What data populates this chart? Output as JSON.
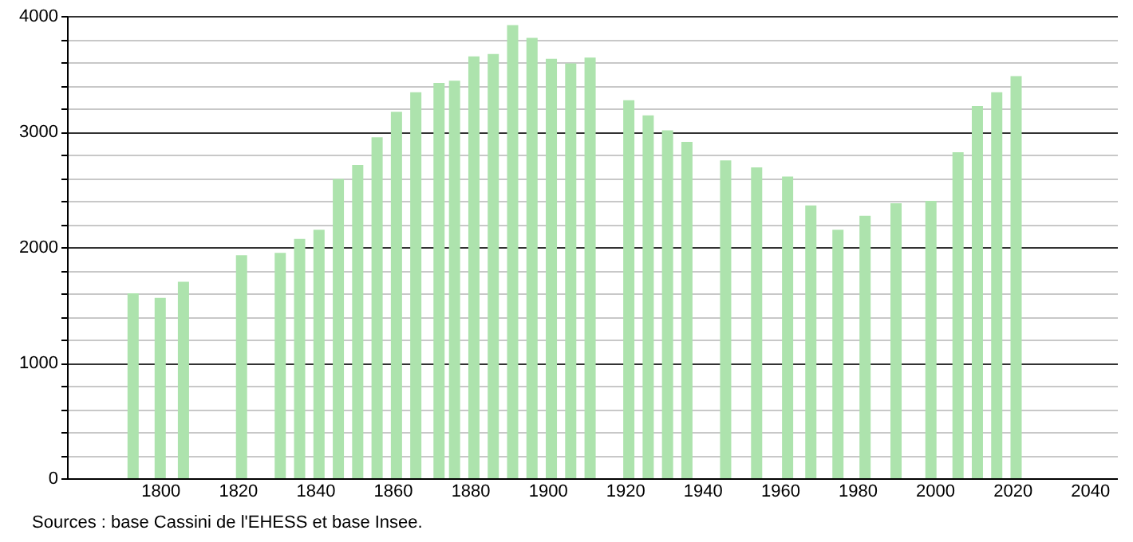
{
  "chart_data": {
    "type": "bar",
    "color": "#ade3ad",
    "x": [
      1793,
      1800,
      1806,
      1821,
      1831,
      1836,
      1841,
      1846,
      1851,
      1856,
      1861,
      1866,
      1872,
      1876,
      1881,
      1886,
      1891,
      1896,
      1901,
      1906,
      1911,
      1921,
      1926,
      1931,
      1936,
      1946,
      1954,
      1962,
      1968,
      1975,
      1982,
      1990,
      1999,
      2006,
      2011,
      2016,
      2021
    ],
    "values": [
      1600,
      1560,
      1700,
      1930,
      1950,
      2070,
      2150,
      2590,
      2710,
      2950,
      3170,
      3340,
      3420,
      3440,
      3650,
      3670,
      3920,
      3810,
      3630,
      3590,
      3640,
      3270,
      3140,
      3010,
      2910,
      2750,
      2690,
      2610,
      2360,
      2150,
      2270,
      2380,
      2400,
      2820,
      3220,
      3340,
      3480
    ],
    "xlim": [
      1778,
      2045
    ],
    "xticks": [
      1800,
      1820,
      1840,
      1860,
      1880,
      1900,
      1920,
      1940,
      1960,
      1980,
      2000,
      2020,
      2040
    ],
    "ylim": [
      0,
      4000
    ],
    "yticks": [
      0,
      {
        "value": 200,
        "label": null
      },
      {
        "value": 400,
        "label": null
      },
      {
        "value": 600,
        "label": null
      },
      {
        "value": 800,
        "label": null
      },
      1000,
      {
        "value": 1200,
        "label": null
      },
      {
        "value": 1400,
        "label": null
      },
      {
        "value": 1600,
        "label": null
      },
      {
        "value": 1800,
        "label": null
      },
      2000,
      {
        "value": 2200,
        "label": null
      },
      {
        "value": 2400,
        "label": null
      },
      {
        "value": 2600,
        "label": null
      },
      {
        "value": 2800,
        "label": null
      },
      3000,
      {
        "value": 3200,
        "label": null
      },
      {
        "value": 3400,
        "label": null
      },
      {
        "value": 3600,
        "label": null
      },
      {
        "value": 3800,
        "label": null
      },
      4000
    ],
    "grid": "y",
    "annotations": [
      "Sources : base Cassini de l'EHESS et base Insee."
    ]
  }
}
